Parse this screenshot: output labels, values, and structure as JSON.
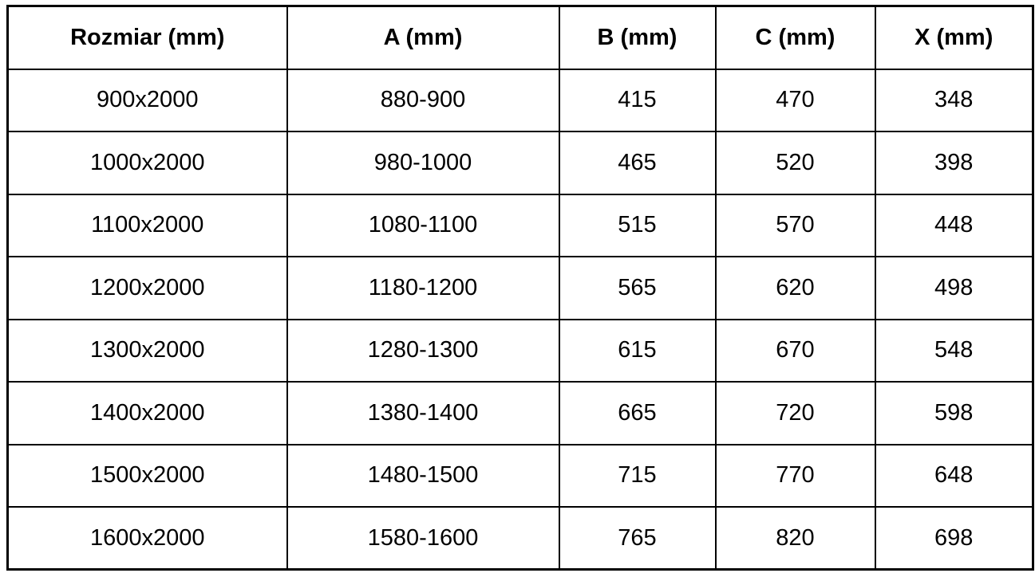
{
  "table": {
    "name": "dimensions-table",
    "columns": [
      {
        "label": "Rozmiar (mm)"
      },
      {
        "label": "A (mm)"
      },
      {
        "label": "B (mm)"
      },
      {
        "label": "C (mm)"
      },
      {
        "label": "X (mm)"
      }
    ],
    "rows": [
      [
        "900x2000",
        "880-900",
        "415",
        "470",
        "348"
      ],
      [
        "1000x2000",
        "980-1000",
        "465",
        "520",
        "398"
      ],
      [
        "1100x2000",
        "1080-1100",
        "515",
        "570",
        "448"
      ],
      [
        "1200x2000",
        "1180-1200",
        "565",
        "620",
        "498"
      ],
      [
        "1300x2000",
        "1280-1300",
        "615",
        "670",
        "548"
      ],
      [
        "1400x2000",
        "1380-1400",
        "665",
        "720",
        "598"
      ],
      [
        "1500x2000",
        "1480-1500",
        "715",
        "770",
        "648"
      ],
      [
        "1600x2000",
        "1580-1600",
        "765",
        "820",
        "698"
      ]
    ]
  },
  "colors": {
    "border": "#000000",
    "text": "#000000",
    "background": "#ffffff"
  }
}
